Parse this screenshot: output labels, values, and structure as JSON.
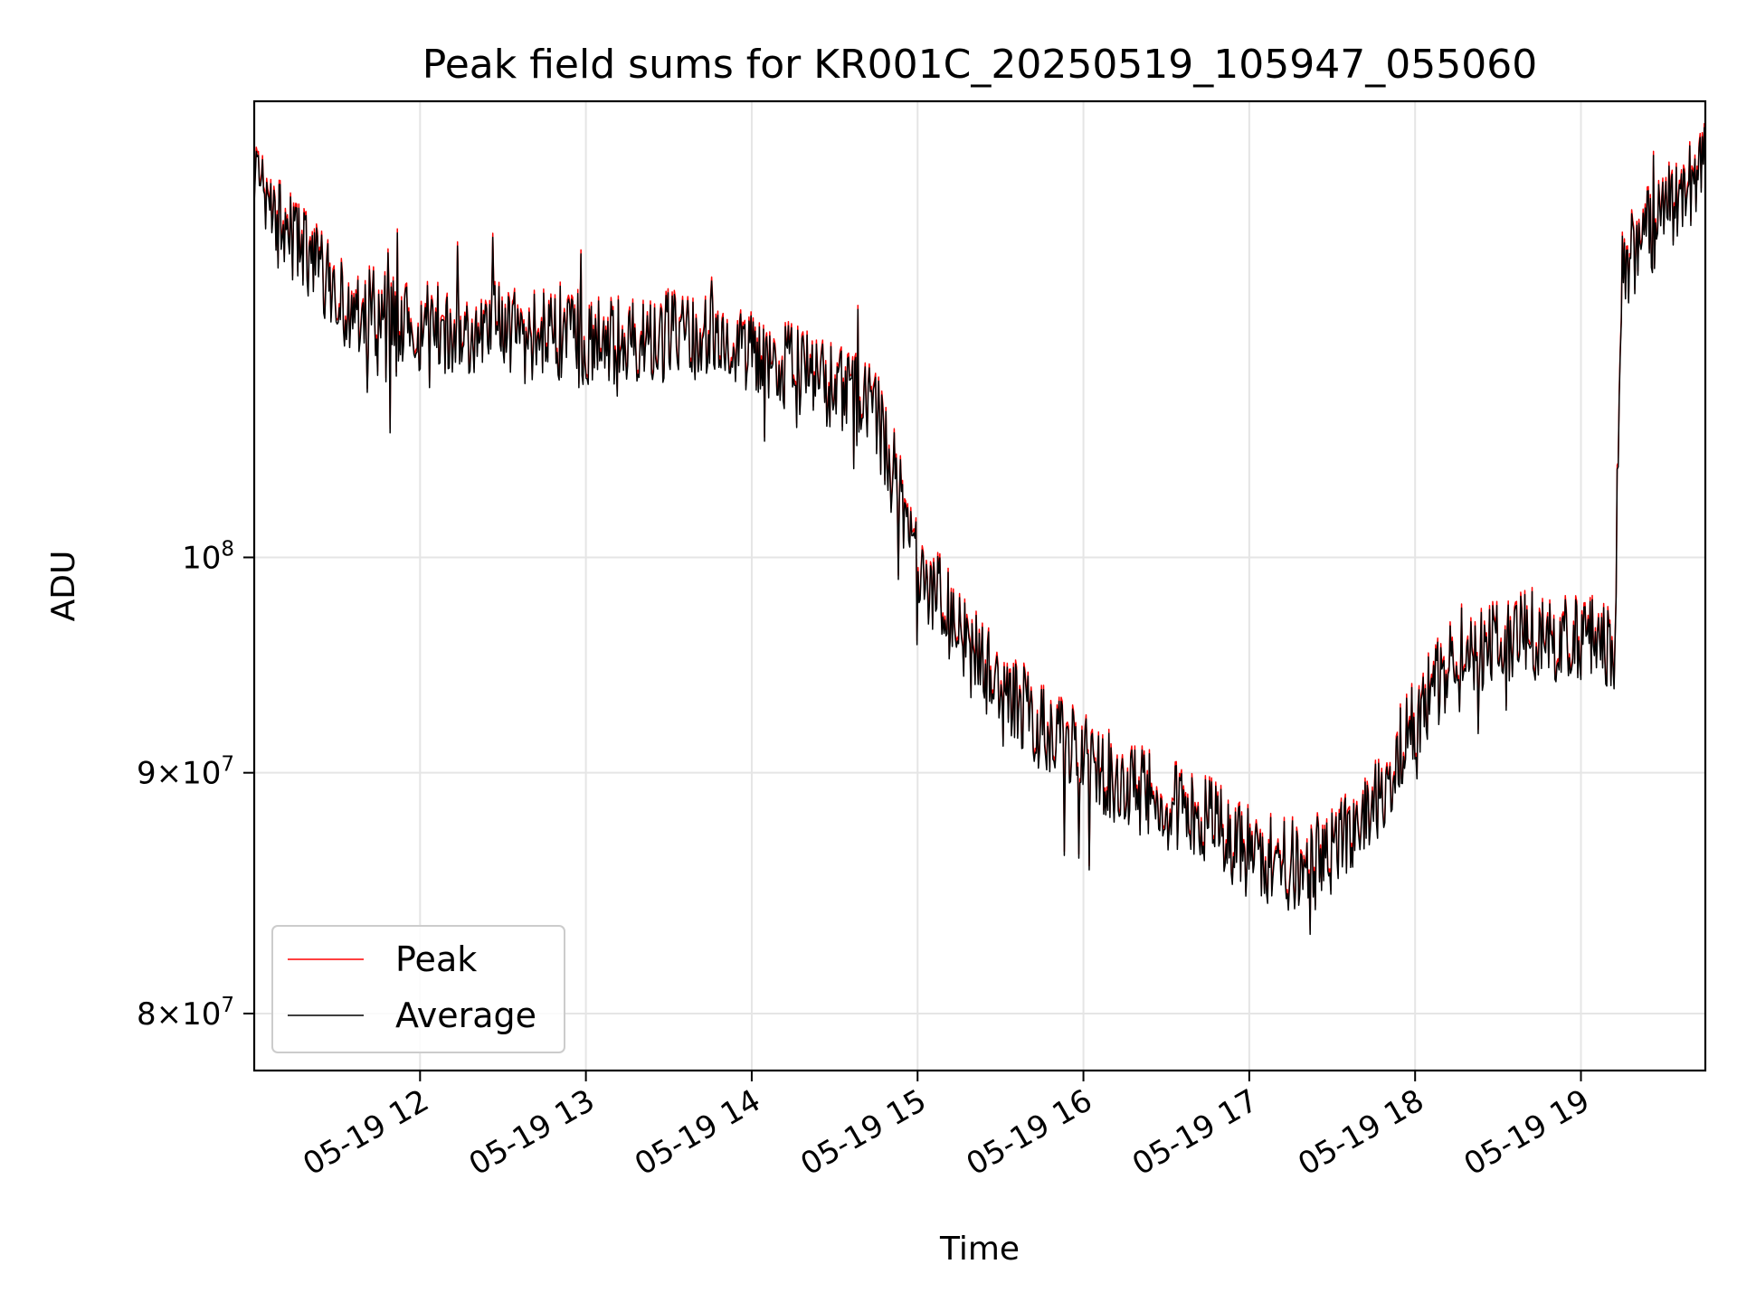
{
  "chart_data": {
    "type": "line",
    "title": "Peak field sums for KR001C_20250519_105947_055060",
    "xlabel": "Time",
    "ylabel": "ADU",
    "yscale": "log",
    "xlim_hours": [
      11.0,
      19.75
    ],
    "ylim": [
      77800000,
      125000000
    ],
    "x_ticks": [
      {
        "value": 12,
        "label": "05-19 12"
      },
      {
        "value": 13,
        "label": "05-19 13"
      },
      {
        "value": 14,
        "label": "05-19 14"
      },
      {
        "value": 15,
        "label": "05-19 15"
      },
      {
        "value": 16,
        "label": "05-19 16"
      },
      {
        "value": 17,
        "label": "05-19 17"
      },
      {
        "value": 18,
        "label": "05-19 18"
      },
      {
        "value": 19,
        "label": "05-19 19"
      }
    ],
    "y_ticks": [
      {
        "value": 80000000,
        "mant": "8",
        "times": "×10",
        "exp": "7"
      },
      {
        "value": 90000000,
        "mant": "9",
        "times": "×10",
        "exp": "7"
      },
      {
        "value": 100000000,
        "mant": "",
        "times": "10",
        "exp": "8"
      }
    ],
    "grid": true,
    "legend_position": "bottom-left",
    "series": [
      {
        "name": "Peak",
        "color": "#ff0000",
        "offset_ratio": 1.002,
        "anchors": [
          [
            11.0,
            119500000
          ],
          [
            11.25,
            116500000
          ],
          [
            11.5,
            113500000
          ],
          [
            11.75,
            112500000
          ],
          [
            12.0,
            112000000
          ],
          [
            12.25,
            111700000
          ],
          [
            12.5,
            111800000
          ],
          [
            12.75,
            111600000
          ],
          [
            13.0,
            111000000
          ],
          [
            13.25,
            111300000
          ],
          [
            13.5,
            111400000
          ],
          [
            13.75,
            111100000
          ],
          [
            14.0,
            110300000
          ],
          [
            14.25,
            109600000
          ],
          [
            14.5,
            108700000
          ],
          [
            14.75,
            107300000
          ],
          [
            15.0,
            99500000
          ],
          [
            15.25,
            96500000
          ],
          [
            15.5,
            94000000
          ],
          [
            15.75,
            92000000
          ],
          [
            16.0,
            90500000
          ],
          [
            16.25,
            89500000
          ],
          [
            16.5,
            88500000
          ],
          [
            16.75,
            88000000
          ],
          [
            17.0,
            86500000
          ],
          [
            17.25,
            86000000
          ],
          [
            17.5,
            86500000
          ],
          [
            17.75,
            88500000
          ],
          [
            18.0,
            92500000
          ],
          [
            18.25,
            95500000
          ],
          [
            18.5,
            96000000
          ],
          [
            18.75,
            96300000
          ],
          [
            19.0,
            96000000
          ],
          [
            19.2,
            95800000
          ],
          [
            19.25,
            115000000
          ],
          [
            19.5,
            118500000
          ],
          [
            19.75,
            121000000
          ]
        ]
      },
      {
        "name": "Average",
        "color": "#000000",
        "offset_ratio": 1.0
      }
    ],
    "samples": 1400,
    "noise_amplitude": 0.022,
    "seed": 20250519
  }
}
